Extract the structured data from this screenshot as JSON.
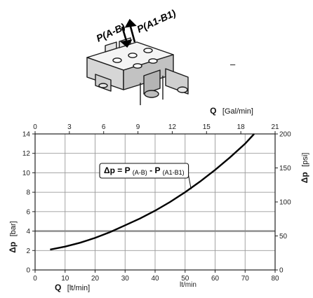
{
  "illustration": {
    "port_label_left": "P(A-B)",
    "port_label_right": "P(A1-B1)",
    "dash_mark": "–"
  },
  "chart_data": {
    "type": "line",
    "title": "",
    "x_bottom": {
      "symbol": "Q",
      "unit": "[lt/min]",
      "range": [
        0,
        80
      ],
      "ticks": [
        0,
        10,
        20,
        30,
        40,
        50,
        60,
        70,
        80
      ],
      "extra_label": "lt/min"
    },
    "x_top": {
      "symbol": "Q",
      "unit": "[Gal/min]",
      "range": [
        0,
        21
      ],
      "ticks": [
        0,
        3,
        6,
        9,
        12,
        15,
        18,
        21
      ]
    },
    "y_left": {
      "symbol": "Δp",
      "unit": "[bar]",
      "range": [
        0,
        14
      ],
      "ticks": [
        0,
        2,
        4,
        6,
        8,
        10,
        12,
        14
      ]
    },
    "y_right": {
      "symbol": "Δp",
      "unit": "[psi]",
      "range": [
        0,
        200
      ],
      "ticks": [
        0,
        50,
        100,
        150,
        200
      ]
    },
    "grid": true,
    "highlight_line_y": 4,
    "annotation": {
      "text": "Δp = P(A-B) - P(A1-B1)",
      "parts": {
        "lead": "Δp = P",
        "sub1": "(A-B)",
        "mid": " - P",
        "sub2": "(A1-B1)"
      },
      "arrow_to": {
        "x": 52,
        "y": 8.3
      }
    },
    "series": [
      {
        "x": [
          5,
          10,
          15,
          20,
          25,
          30,
          35,
          40,
          45,
          50,
          55,
          60,
          65,
          70,
          73
        ],
        "y": [
          2.1,
          2.4,
          2.8,
          3.3,
          3.9,
          4.6,
          5.3,
          6.1,
          7.0,
          8.0,
          9.1,
          10.3,
          11.6,
          13.0,
          14.0
        ]
      }
    ]
  }
}
